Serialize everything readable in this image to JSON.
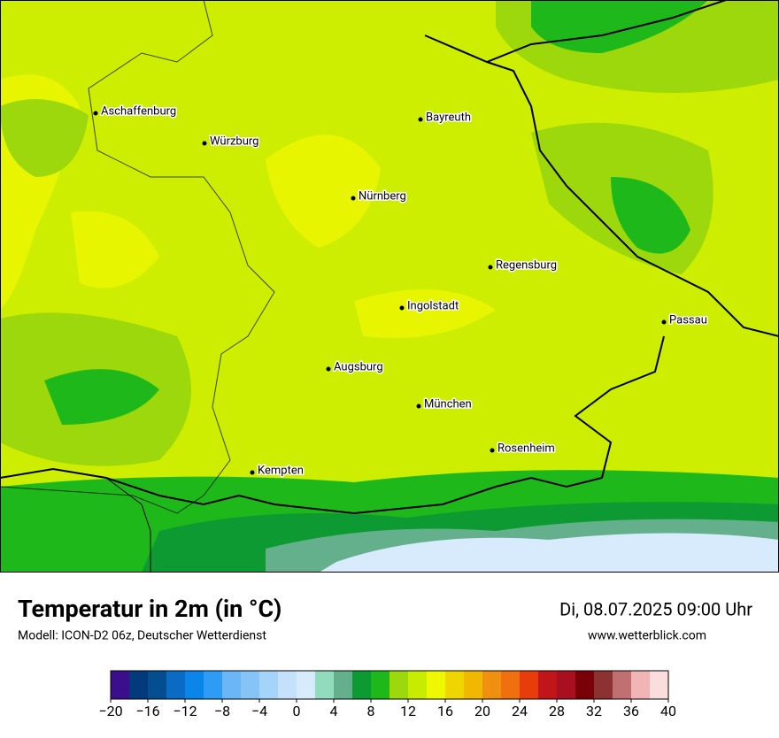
{
  "map": {
    "cities": [
      "Aschaffenburg",
      "Würzburg",
      "Bayreuth",
      "Nürnberg",
      "Regensburg",
      "Ingolstadt",
      "Passau",
      "Augsburg",
      "München",
      "Rosenheim",
      "Kempten"
    ]
  },
  "footer": {
    "title": "Temperatur in 2m (in °C)",
    "model": "Modell: ICON-D2 06z, Deutscher Wetterdienst",
    "datetime": "Di, 08.07.2025 09:00 Uhr",
    "website": "www.wetterblick.com"
  },
  "legend": {
    "bins": [
      -20,
      -18,
      -16,
      -14,
      -12,
      -10,
      -8,
      -6,
      -4,
      -2,
      0,
      2,
      4,
      6,
      8,
      10,
      12,
      14,
      16,
      18,
      20,
      22,
      24,
      26,
      28,
      30,
      32,
      34,
      36,
      38,
      40
    ],
    "colors": [
      "#3b0f8c",
      "#033a7c",
      "#044d8e",
      "#0a6ac4",
      "#0a86e8",
      "#2e9cf4",
      "#6ab6f6",
      "#86c4f8",
      "#a4d4fa",
      "#c4e0fa",
      "#d8ebfc",
      "#92dcbe",
      "#64b08c",
      "#0e9a32",
      "#1eb81a",
      "#9cd80c",
      "#c8ec00",
      "#eef800",
      "#f0d600",
      "#f0b800",
      "#f09010",
      "#f07010",
      "#e83c0c",
      "#c0161a",
      "#a81020",
      "#7a0008",
      "#8c3232",
      "#c07070",
      "#f0b4b4",
      "#fadede"
    ],
    "ticks": [
      {
        "value": -20,
        "label": "−20"
      },
      {
        "value": -16,
        "label": "−16"
      },
      {
        "value": -12,
        "label": "−12"
      },
      {
        "value": -8,
        "label": "−8"
      },
      {
        "value": -4,
        "label": "−4"
      },
      0,
      4,
      8,
      12,
      16,
      20,
      24,
      28,
      32,
      36,
      40
    ]
  }
}
